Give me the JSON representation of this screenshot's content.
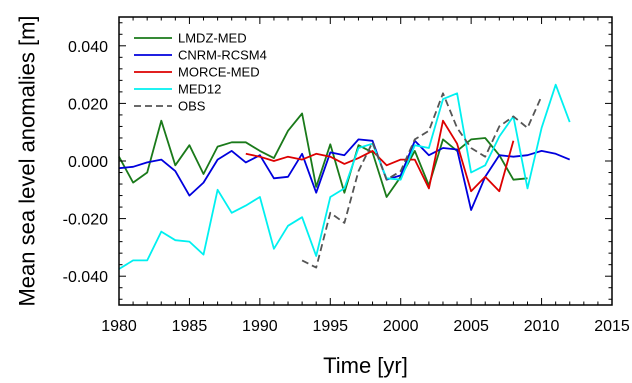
{
  "chart_data": {
    "type": "line",
    "xlabel": "Time [yr]",
    "ylabel": "Mean sea level anomalies [m]",
    "xlim": [
      1980,
      2015
    ],
    "ylim": [
      -0.05,
      0.05
    ],
    "xticks": [
      "1980",
      "1985",
      "1990",
      "1995",
      "2000",
      "2005",
      "2010",
      "2015"
    ],
    "yticks": [
      "-0.040",
      "-0.020",
      "0.000",
      "0.020",
      "0.040"
    ],
    "legend_position": "top-left",
    "grid": false,
    "series": [
      {
        "name": "LMDZ-MED",
        "color": "#1a7a1a",
        "dash": "solid",
        "x": [
          1980,
          1981,
          1982,
          1983,
          1984,
          1985,
          1986,
          1987,
          1988,
          1989,
          1990,
          1991,
          1992,
          1993,
          1994,
          1995,
          1996,
          1997,
          1998,
          1999,
          2000,
          2001,
          2002,
          2003,
          2004,
          2005,
          2006,
          2007,
          2008,
          2009
        ],
        "y": [
          0.0015,
          -0.0075,
          -0.004,
          0.014,
          -0.0015,
          0.0055,
          -0.0045,
          0.005,
          0.0065,
          0.0065,
          0.0035,
          0.001,
          0.0105,
          0.0165,
          -0.009,
          0.0058,
          -0.011,
          0.0055,
          0.003,
          -0.0125,
          -0.0055,
          0.0035,
          -0.0085,
          0.0075,
          0.0035,
          0.0075,
          0.008,
          0.002,
          -0.0065,
          -0.006
        ]
      },
      {
        "name": "CNRM-RCSM4",
        "color": "#0000dd",
        "dash": "solid",
        "x": [
          1980,
          1981,
          1982,
          1983,
          1984,
          1985,
          1986,
          1987,
          1988,
          1989,
          1990,
          1991,
          1992,
          1993,
          1994,
          1995,
          1996,
          1997,
          1998,
          1999,
          2000,
          2001,
          2002,
          2003,
          2004,
          2005,
          2006,
          2007,
          2008,
          2009,
          2010,
          2011,
          2012
        ],
        "y": [
          -0.0025,
          -0.002,
          -0.0005,
          0.0005,
          -0.0035,
          -0.012,
          -0.0075,
          0.0005,
          0.0035,
          -0.0005,
          0.002,
          -0.006,
          -0.0055,
          0.0025,
          -0.011,
          0.003,
          0.002,
          0.0075,
          0.007,
          -0.0065,
          -0.005,
          0.007,
          0.002,
          0.0045,
          0.004,
          -0.017,
          -0.0055,
          0.002,
          0.0015,
          0.002,
          0.0035,
          0.0025,
          0.0005
        ]
      },
      {
        "name": "MORCE-MED",
        "color": "#dd0000",
        "dash": "solid",
        "x": [
          1989,
          1990,
          1991,
          1992,
          1993,
          1994,
          1995,
          1996,
          1997,
          1998,
          1999,
          2000,
          2001,
          2002,
          2003,
          2004,
          2005,
          2006,
          2007,
          2008
        ],
        "y": [
          0.0025,
          0.0015,
          0.0,
          0.0015,
          0.0005,
          0.0025,
          0.0015,
          -0.001,
          0.001,
          0.0035,
          -0.0015,
          0.0005,
          0.0005,
          -0.0095,
          0.014,
          0.006,
          -0.0105,
          -0.0055,
          -0.0105,
          0.007
        ]
      },
      {
        "name": "MED12",
        "color": "#00f0f0",
        "dash": "solid",
        "x": [
          1980,
          1981,
          1982,
          1983,
          1984,
          1985,
          1986,
          1987,
          1988,
          1989,
          1990,
          1991,
          1992,
          1993,
          1994,
          1995,
          1996,
          1997,
          1998,
          1999,
          2000,
          2001,
          2002,
          2003,
          2004,
          2005,
          2006,
          2007,
          2008,
          2009,
          2010,
          2011,
          2012
        ],
        "y": [
          -0.0375,
          -0.0345,
          -0.0345,
          -0.0245,
          -0.0275,
          -0.028,
          -0.0325,
          -0.01,
          -0.018,
          -0.0155,
          -0.0125,
          -0.0305,
          -0.0225,
          -0.0195,
          -0.033,
          -0.0125,
          -0.0095,
          0.0045,
          0.006,
          -0.006,
          -0.0065,
          0.0055,
          0.0045,
          0.0215,
          0.0235,
          -0.004,
          -0.0015,
          0.0085,
          0.0155,
          -0.0095,
          0.0115,
          0.0265,
          0.0135
        ]
      },
      {
        "name": "OBS",
        "color": "#555555",
        "dash": "dashed",
        "x": [
          1993,
          1994,
          1995,
          1996,
          1997,
          1998,
          1999,
          2000,
          2001,
          2002,
          2003,
          2004,
          2005,
          2006,
          2007,
          2008,
          2009,
          2010
        ],
        "y": [
          -0.0345,
          -0.037,
          -0.018,
          -0.0215,
          -0.0035,
          0.0065,
          -0.0065,
          -0.0035,
          0.0075,
          0.0105,
          0.0235,
          0.0115,
          0.0045,
          0.0015,
          0.012,
          0.0155,
          0.0115,
          0.0225
        ]
      }
    ]
  }
}
